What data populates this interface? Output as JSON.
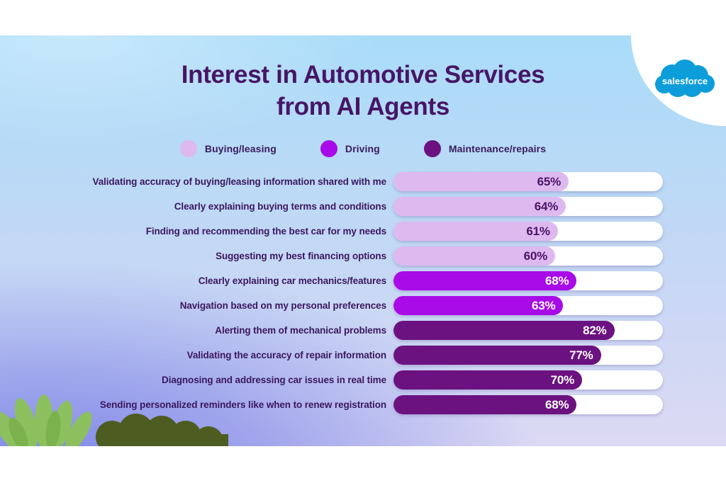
{
  "header": {
    "title_line1": "Interest in Automotive Services",
    "title_line2": "from AI Agents"
  },
  "brand": {
    "wordmark": "salesforce"
  },
  "colors": {
    "background_top": "#a9dcf9",
    "background_bottom_right": "#dcd9f4",
    "background_bottom_left": "#727ce6",
    "title_text": "#471567",
    "label_text": "#3b175e",
    "bar_track": "#ffffff",
    "salesforce_blue": "#0d9ddb",
    "plant_light_green": "#8cc05e",
    "bush_dark_green": "#4d5c20"
  },
  "chart_data": {
    "type": "bar",
    "orientation": "horizontal",
    "title": "Interest in Automotive Services from AI Agents",
    "value_unit": "%",
    "axis_range": [
      0,
      100
    ],
    "grid": false,
    "legend_position": "top",
    "legend": [
      {
        "key": "buying",
        "label": "Buying/leasing",
        "color": "#deb9f0",
        "value_text_color": "#4b1365"
      },
      {
        "key": "driving",
        "label": "Driving",
        "color": "#a80be8",
        "value_text_color": "#ffffff"
      },
      {
        "key": "maintenance",
        "label": "Maintenance/repairs",
        "color": "#6b1280",
        "value_text_color": "#ffffff"
      }
    ],
    "rows": [
      {
        "group": "buying",
        "label": "Validating accuracy of buying/leasing information shared with me",
        "value": 65,
        "value_label": "65%"
      },
      {
        "group": "buying",
        "label": "Clearly explaining buying terms and conditions",
        "value": 64,
        "value_label": "64%"
      },
      {
        "group": "buying",
        "label": "Finding and recommending the best car for my needs",
        "value": 61,
        "value_label": "61%"
      },
      {
        "group": "buying",
        "label": "Suggesting my best financing options",
        "value": 60,
        "value_label": "60%"
      },
      {
        "group": "driving",
        "label": "Clearly explaining car mechanics/features",
        "value": 68,
        "value_label": "68%"
      },
      {
        "group": "driving",
        "label": "Navigation based on my personal preferences",
        "value": 63,
        "value_label": "63%"
      },
      {
        "group": "maintenance",
        "label": "Alerting them of mechanical problems",
        "value": 82,
        "value_label": "82%"
      },
      {
        "group": "maintenance",
        "label": "Validating the accuracy of repair information",
        "value": 77,
        "value_label": "77%"
      },
      {
        "group": "maintenance",
        "label": "Diagnosing and addressing car issues in real time",
        "value": 70,
        "value_label": "70%"
      },
      {
        "group": "maintenance",
        "label": "Sending personalized reminders like when to renew registration",
        "value": 68,
        "value_label": "68%"
      }
    ]
  }
}
